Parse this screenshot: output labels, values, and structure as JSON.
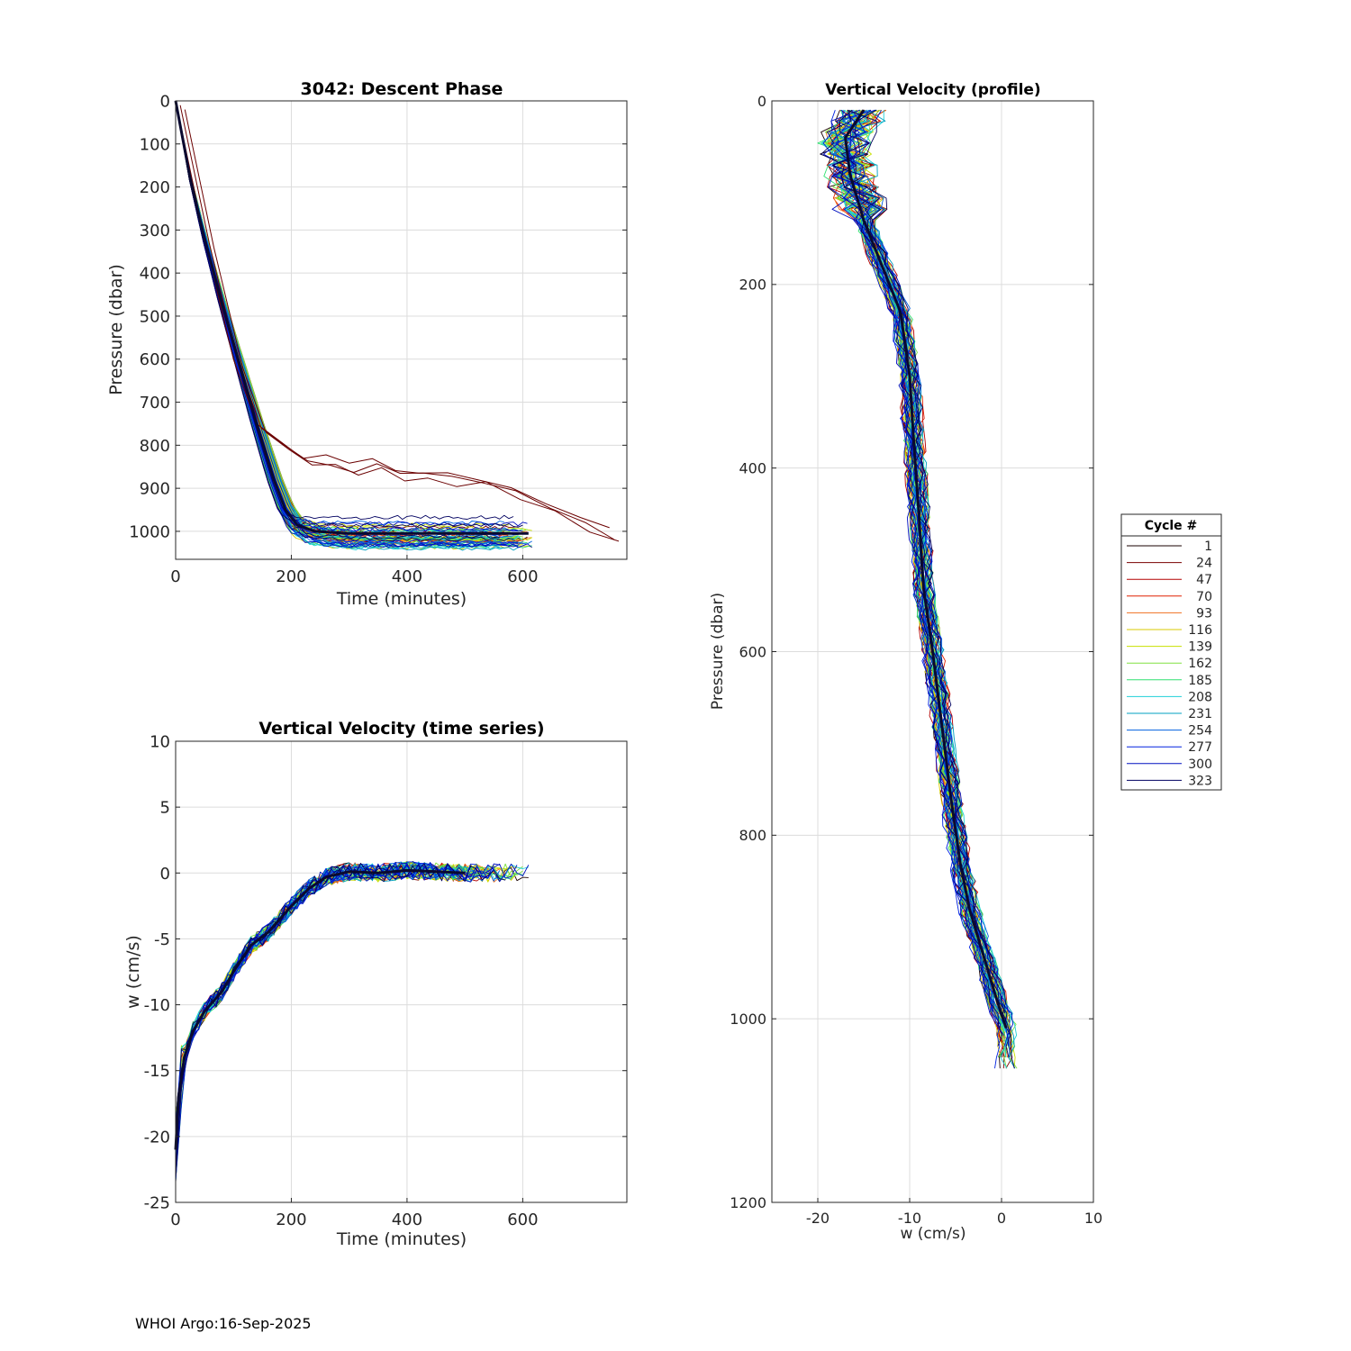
{
  "footer": "WHOI Argo:16-Sep-2025",
  "legend": {
    "title": "Cycle #",
    "entries": [
      "1",
      "24",
      "47",
      "70",
      "93",
      "116",
      "139",
      "162",
      "185",
      "208",
      "231",
      "254",
      "277",
      "300",
      "323"
    ],
    "colors": [
      "#1a0000",
      "#7a0000",
      "#b30000",
      "#e02000",
      "#f07020",
      "#d8c800",
      "#c8e000",
      "#80e040",
      "#30e070",
      "#20d0d8",
      "#00a0c0",
      "#0060e0",
      "#0020e0",
      "#0010c0",
      "#000060"
    ]
  },
  "chart_data": [
    {
      "type": "line",
      "title": "3042: Descent Phase",
      "xlabel": "Time (minutes)",
      "ylabel": "Pressure (dbar)",
      "xlim": [
        0,
        780
      ],
      "ylim": [
        0,
        1065
      ],
      "y_reversed": true,
      "xticks": [
        0,
        200,
        400,
        600
      ],
      "yticks": [
        0,
        100,
        200,
        300,
        400,
        500,
        600,
        700,
        800,
        900,
        1000
      ],
      "grid": true,
      "series_summary": "typical descent curve",
      "typical": {
        "x": [
          0,
          25,
          50,
          80,
          110,
          140,
          170,
          190,
          210,
          240,
          300,
          400,
          500,
          610
        ],
        "y": [
          0,
          180,
          320,
          470,
          610,
          750,
          880,
          950,
          985,
          1000,
          1005,
          1005,
          1005,
          1005
        ]
      },
      "anomaly": {
        "x": [
          0,
          50,
          100,
          140,
          180,
          220,
          260,
          300,
          340,
          380,
          420,
          470,
          520,
          580,
          640,
          700,
          750
        ],
        "y": [
          0,
          320,
          600,
          750,
          790,
          835,
          830,
          845,
          825,
          860,
          862,
          870,
          872,
          905,
          940,
          975,
          1000
        ]
      }
    },
    {
      "type": "line",
      "title": "Vertical Velocity (time series)",
      "xlabel": "Time (minutes)",
      "ylabel": "w (cm/s)",
      "xlim": [
        0,
        780
      ],
      "ylim": [
        -25,
        10
      ],
      "xticks": [
        0,
        200,
        400,
        600
      ],
      "yticks": [
        10,
        5,
        0,
        -5,
        -10,
        -15,
        -20,
        -25
      ],
      "grid": true,
      "typical": {
        "x": [
          0,
          5,
          15,
          30,
          50,
          80,
          100,
          130,
          160,
          200,
          230,
          260,
          300,
          350,
          400,
          450,
          500
        ],
        "y": [
          -21,
          -17,
          -14,
          -12,
          -10.5,
          -9,
          -7.5,
          -5.5,
          -4.5,
          -2.5,
          -1.2,
          -0.3,
          0.1,
          0,
          0.2,
          0.1,
          0
        ]
      }
    },
    {
      "type": "line",
      "title": "Vertical Velocity (profile)",
      "xlabel": "w (cm/s)",
      "ylabel": "Pressure (dbar)",
      "xlim": [
        -25,
        10
      ],
      "ylim": [
        0,
        1200
      ],
      "y_reversed": true,
      "xticks": [
        -20,
        -10,
        0,
        10
      ],
      "yticks": [
        0,
        200,
        400,
        600,
        800,
        1000,
        1200
      ],
      "grid": true,
      "typical": {
        "x": [
          -15,
          -17,
          -16.5,
          -15,
          -13,
          -11,
          -10,
          -9.5,
          -9,
          -8.5,
          -7.5,
          -6.5,
          -5.5,
          -4.5,
          -3.5,
          -2,
          -0.5,
          0.5
        ],
        "y": [
          10,
          40,
          80,
          130,
          180,
          230,
          300,
          380,
          450,
          530,
          600,
          680,
          760,
          830,
          880,
          930,
          980,
          1010
        ]
      }
    }
  ]
}
